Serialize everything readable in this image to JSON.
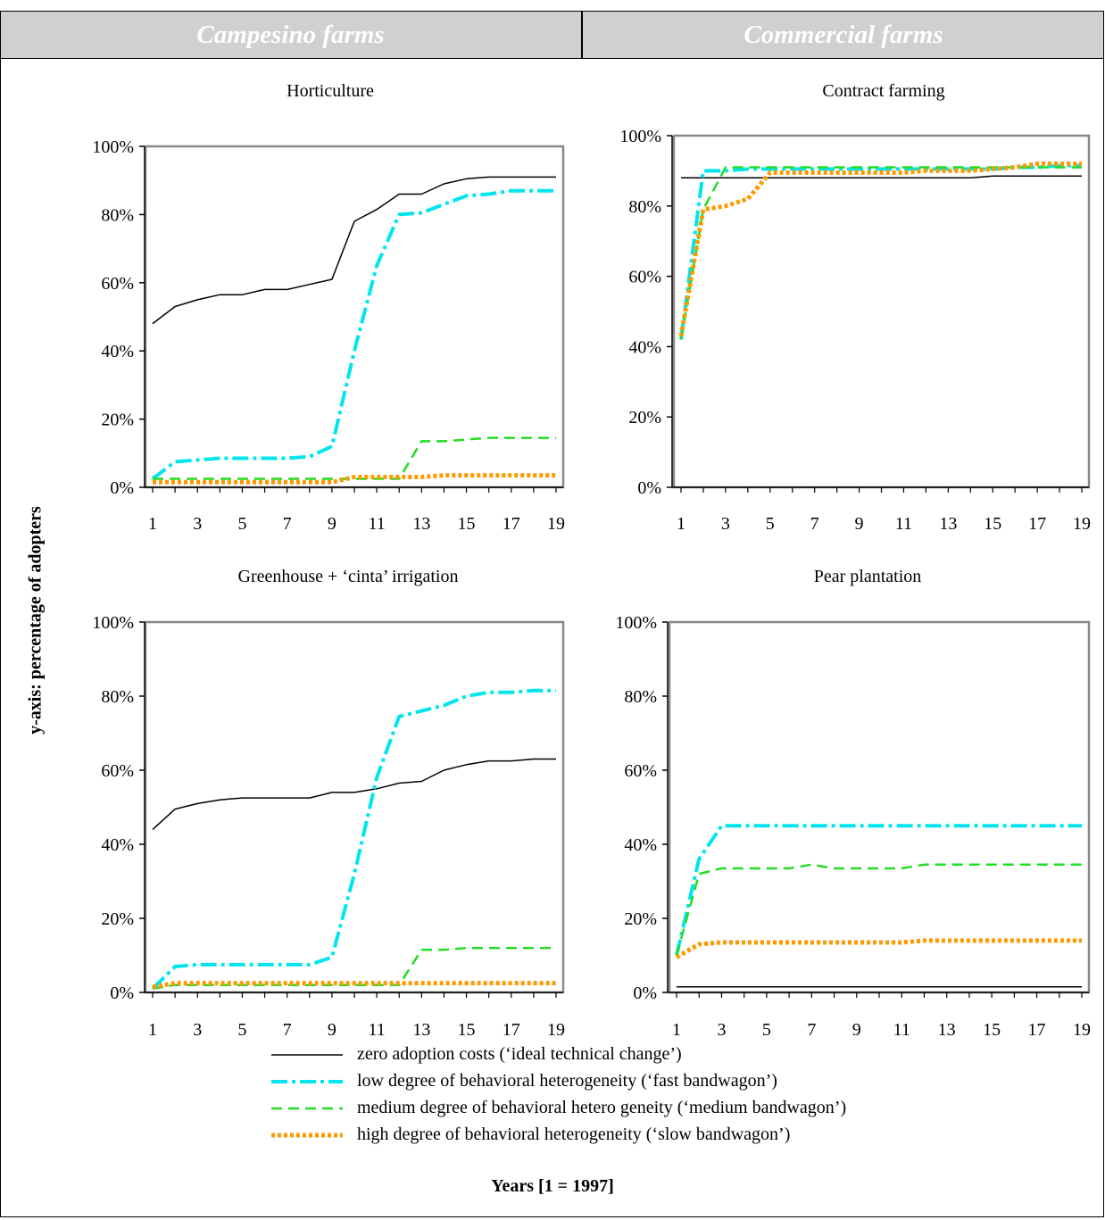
{
  "header": {
    "left": "Campesino farms",
    "right": "Commercial farms",
    "background_color": "#d0d0d0",
    "text_color": "#ffffff"
  },
  "y_axis_caption": "y-axis: percentage of adopters",
  "x_axis_caption": "Years [1 = 1997]",
  "legend": [
    {
      "label": "zero adoption costs (‘ideal technical change’)",
      "color": "#000000",
      "style": "solid"
    },
    {
      "label": "low degree of behavioral heterogeneity (‘fast bandwagon’)",
      "color": "#00e5ee",
      "style": "dash-dot"
    },
    {
      "label": "medium degree of behavioral hetero geneity (‘medium bandwagon’)",
      "color": "#22dd22",
      "style": "dashed"
    },
    {
      "label": "high degree of behavioral heterogeneity (‘slow bandwagon’)",
      "color": "#ff9900",
      "style": "dotted"
    }
  ],
  "chart_data": [
    {
      "type": "line",
      "title": "Horticulture",
      "x": [
        1,
        2,
        3,
        4,
        5,
        6,
        7,
        8,
        9,
        10,
        11,
        12,
        13,
        14,
        15,
        16,
        17,
        18,
        19
      ],
      "x_ticks": [
        "1",
        "3",
        "5",
        "7",
        "9",
        "11",
        "13",
        "15",
        "17",
        "19"
      ],
      "y_ticks": [
        "0%",
        "20%",
        "40%",
        "60%",
        "80%",
        "100%"
      ],
      "ylim": [
        0,
        100
      ],
      "grid": false,
      "series": [
        {
          "name": "zero adoption costs (‘ideal technical change’)",
          "values": [
            48,
            53,
            55,
            56.5,
            56.5,
            58,
            58,
            59.5,
            61,
            78,
            81.5,
            86,
            86,
            89,
            90.5,
            91,
            91,
            91,
            91
          ]
        },
        {
          "name": "low degree of behavioral heterogeneity (‘fast bandwagon’)",
          "values": [
            2.5,
            7.5,
            8,
            8.5,
            8.5,
            8.5,
            8.5,
            9,
            12,
            40,
            65,
            80,
            80.5,
            83,
            85.5,
            86,
            87,
            87,
            87
          ]
        },
        {
          "name": "medium degree of behavioral hetero geneity (‘medium bandwagon’)",
          "values": [
            2.5,
            2.5,
            2.5,
            2.5,
            2.5,
            2.5,
            2.5,
            2.5,
            2.5,
            2.5,
            2.5,
            2.5,
            13.5,
            13.5,
            14,
            14.5,
            14.5,
            14.5,
            14.5
          ]
        },
        {
          "name": "high degree of behavioral heterogeneity (‘slow bandwagon’)",
          "values": [
            1.5,
            1.5,
            1.5,
            1.5,
            1.5,
            1.5,
            1.5,
            1.5,
            1.5,
            3,
            3,
            3,
            3,
            3.5,
            3.5,
            3.5,
            3.5,
            3.5,
            3.5
          ]
        }
      ]
    },
    {
      "type": "line",
      "title": "Contract farming",
      "x": [
        1,
        2,
        3,
        4,
        5,
        6,
        7,
        8,
        9,
        10,
        11,
        12,
        13,
        14,
        15,
        16,
        17,
        18,
        19
      ],
      "x_ticks": [
        "1",
        "3",
        "5",
        "7",
        "9",
        "11",
        "13",
        "15",
        "17",
        "19"
      ],
      "y_ticks": [
        "0%",
        "20%",
        "40%",
        "60%",
        "80%",
        "100%"
      ],
      "ylim": [
        0,
        100
      ],
      "grid": false,
      "series": [
        {
          "name": "zero adoption costs (‘ideal technical change’)",
          "values": [
            88,
            88,
            88,
            88,
            88,
            88,
            88,
            88,
            88,
            88,
            88,
            88,
            88,
            88,
            88.5,
            88.5,
            88.5,
            88.5,
            88.5
          ]
        },
        {
          "name": "low degree of behavioral heterogeneity (‘fast bandwagon’)",
          "values": [
            42,
            90,
            90,
            90.5,
            90.5,
            90.5,
            90.5,
            90.5,
            90.5,
            90.5,
            90.5,
            90.5,
            90.5,
            90.5,
            90.5,
            91,
            91,
            91.5,
            91.5
          ]
        },
        {
          "name": "medium degree of behavioral hetero geneity (‘medium bandwagon’)",
          "values": [
            42,
            79,
            91,
            91,
            91,
            91,
            91,
            91,
            91,
            91,
            91,
            91,
            91,
            91,
            91,
            91,
            91,
            91,
            91
          ]
        },
        {
          "name": "high degree of behavioral heterogeneity (‘slow bandwagon’)",
          "values": [
            43,
            79,
            80,
            82,
            89.5,
            89.5,
            89.5,
            89.5,
            89.5,
            89.5,
            89.5,
            90,
            90,
            90,
            90.5,
            91,
            92,
            92,
            92
          ]
        }
      ]
    },
    {
      "type": "line",
      "title": "Greenhouse + ‘cinta’ irrigation",
      "x": [
        1,
        2,
        3,
        4,
        5,
        6,
        7,
        8,
        9,
        10,
        11,
        12,
        13,
        14,
        15,
        16,
        17,
        18,
        19
      ],
      "x_ticks": [
        "1",
        "3",
        "5",
        "7",
        "9",
        "11",
        "13",
        "15",
        "17",
        "19"
      ],
      "y_ticks": [
        "0%",
        "20%",
        "40%",
        "60%",
        "80%",
        "100%"
      ],
      "ylim": [
        0,
        100
      ],
      "grid": false,
      "series": [
        {
          "name": "zero adoption costs (‘ideal technical change’)",
          "values": [
            44,
            49.5,
            51,
            52,
            52.5,
            52.5,
            52.5,
            52.5,
            54,
            54,
            55,
            56.5,
            57,
            60,
            61.5,
            62.5,
            62.5,
            63,
            63
          ]
        },
        {
          "name": "low degree of behavioral heterogeneity (‘fast bandwagon’)",
          "values": [
            1,
            7,
            7.5,
            7.5,
            7.5,
            7.5,
            7.5,
            7.5,
            9.5,
            32,
            58,
            74.5,
            76,
            77.5,
            80,
            81,
            81,
            81.5,
            81.5
          ]
        },
        {
          "name": "medium degree of behavioral hetero geneity (‘medium bandwagon’)",
          "values": [
            1,
            2,
            2,
            2,
            2,
            2,
            2,
            2,
            2,
            2,
            2,
            2,
            11.5,
            11.5,
            12,
            12,
            12,
            12,
            12
          ]
        },
        {
          "name": "high degree of behavioral heterogeneity (‘slow bandwagon’)",
          "values": [
            1.5,
            2.5,
            2.5,
            2.5,
            2.5,
            2.5,
            2.5,
            2.5,
            2.5,
            2.5,
            2.5,
            2.5,
            2.5,
            2.5,
            2.5,
            2.5,
            2.5,
            2.5,
            2.5
          ]
        }
      ]
    },
    {
      "type": "line",
      "title": "Pear plantation",
      "x": [
        1,
        2,
        3,
        4,
        5,
        6,
        7,
        8,
        9,
        10,
        11,
        12,
        13,
        14,
        15,
        16,
        17,
        18,
        19
      ],
      "x_ticks": [
        "1",
        "3",
        "5",
        "7",
        "9",
        "11",
        "13",
        "15",
        "17",
        "19"
      ],
      "y_ticks": [
        "0%",
        "20%",
        "40%",
        "60%",
        "80%",
        "100%"
      ],
      "ylim": [
        0,
        100
      ],
      "grid": false,
      "series": [
        {
          "name": "zero adoption costs (‘ideal technical change’)",
          "values": [
            1.5,
            1.5,
            1.5,
            1.5,
            1.5,
            1.5,
            1.5,
            1.5,
            1.5,
            1.5,
            1.5,
            1.5,
            1.5,
            1.5,
            1.5,
            1.5,
            1.5,
            1.5,
            1.5
          ]
        },
        {
          "name": "low degree of behavioral heterogeneity (‘fast bandwagon’)",
          "values": [
            10,
            36,
            45,
            45,
            45,
            45,
            45,
            45,
            45,
            45,
            45,
            45,
            45,
            45,
            45,
            45,
            45,
            45,
            45
          ]
        },
        {
          "name": "medium degree of behavioral hetero geneity (‘medium bandwagon’)",
          "values": [
            10,
            32,
            33.5,
            33.5,
            33.5,
            33.5,
            34.5,
            33.5,
            33.5,
            33.5,
            33.5,
            34.5,
            34.5,
            34.5,
            34.5,
            34.5,
            34.5,
            34.5,
            34.5
          ]
        },
        {
          "name": "high degree of behavioral heterogeneity (‘slow bandwagon’)",
          "values": [
            9.5,
            13,
            13.5,
            13.5,
            13.5,
            13.5,
            13.5,
            13.5,
            13.5,
            13.5,
            13.5,
            14,
            14,
            14,
            14,
            14,
            14,
            14,
            14
          ]
        }
      ]
    }
  ]
}
